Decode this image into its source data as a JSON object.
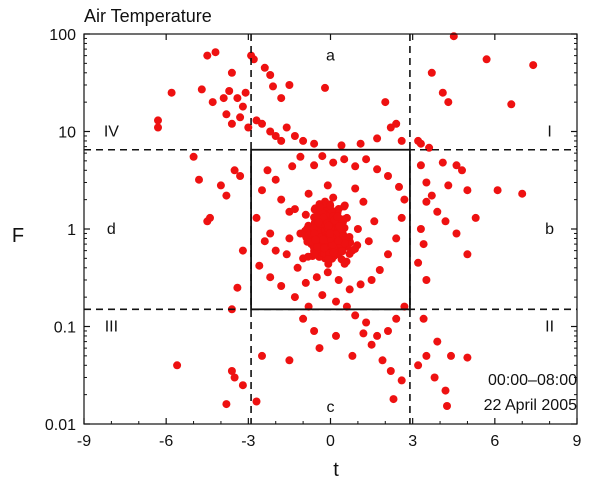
{
  "chart_data": {
    "type": "scatter",
    "title": "Air Temperature",
    "xlabel": "t",
    "ylabel": "F",
    "xlim": [
      -9,
      9
    ],
    "ylim": [
      0.01,
      100
    ],
    "yscale": "log",
    "grid": false,
    "x_ticks": [
      -9,
      -6,
      -3,
      0,
      3,
      6,
      9
    ],
    "x_tick_labels": [
      "-9",
      "-6",
      "-3",
      "0",
      "3",
      "6",
      "9"
    ],
    "y_ticks": [
      0.01,
      0.1,
      1,
      10,
      100
    ],
    "y_tick_labels": [
      "0.01",
      "0.1",
      "1",
      "10",
      "100"
    ],
    "marker_color": "#ee1111",
    "thresholds": {
      "t": [
        -2.9,
        2.9
      ],
      "F": [
        0.15,
        6.5
      ]
    },
    "region_labels": [
      {
        "text": "a",
        "x": 0,
        "y": 60
      },
      {
        "text": "b",
        "x": 8,
        "y": 1
      },
      {
        "text": "c",
        "x": 0,
        "y": 0.015
      },
      {
        "text": "d",
        "x": -8,
        "y": 1
      },
      {
        "text": "I",
        "x": 8,
        "y": 10
      },
      {
        "text": "II",
        "x": 8,
        "y": 0.1
      },
      {
        "text": "III",
        "x": -8,
        "y": 0.1
      },
      {
        "text": "IV",
        "x": -8,
        "y": 10
      }
    ],
    "annotations": [
      "00:00–08:00",
      "22 April 2005"
    ],
    "series": [
      {
        "points": [
          [
            -6.3,
            11
          ],
          [
            -6.3,
            13
          ],
          [
            -5.8,
            25
          ],
          [
            -5.6,
            0.04
          ],
          [
            -4.5,
            60
          ],
          [
            -4.2,
            65
          ],
          [
            -4.7,
            27
          ],
          [
            -4.3,
            20
          ],
          [
            -3.9,
            22
          ],
          [
            -3.6,
            40
          ],
          [
            -3.7,
            26
          ],
          [
            -3.4,
            22
          ],
          [
            -3.2,
            18
          ],
          [
            -3.1,
            25
          ],
          [
            -2.9,
            60
          ],
          [
            -2.8,
            55
          ],
          [
            -2.4,
            45
          ],
          [
            -2.2,
            38
          ],
          [
            -2.1,
            29
          ],
          [
            -1.8,
            22
          ],
          [
            -1.5,
            30
          ],
          [
            -0.2,
            28
          ],
          [
            -3.8,
            15
          ],
          [
            -3.6,
            12
          ],
          [
            -3.3,
            14
          ],
          [
            -3.0,
            11
          ],
          [
            -2.7,
            13
          ],
          [
            -2.5,
            12
          ],
          [
            -2.2,
            10
          ],
          [
            -2.0,
            9
          ],
          [
            -1.8,
            8
          ],
          [
            -1.6,
            11
          ],
          [
            -1.3,
            9
          ],
          [
            -1.0,
            8
          ],
          [
            -0.6,
            7.5
          ],
          [
            0.4,
            7.2
          ],
          [
            1.1,
            7.5
          ],
          [
            1.7,
            8.5
          ],
          [
            2.0,
            20
          ],
          [
            2.2,
            11
          ],
          [
            2.6,
            8
          ],
          [
            2.4,
            12
          ],
          [
            3.2,
            8
          ],
          [
            3.3,
            7.5
          ],
          [
            3.6,
            6.8
          ],
          [
            3.7,
            40
          ],
          [
            4.1,
            25
          ],
          [
            4.3,
            20
          ],
          [
            4.5,
            95
          ],
          [
            5.7,
            55
          ],
          [
            6.6,
            19
          ],
          [
            7.4,
            48
          ],
          [
            3.3,
            4.5
          ],
          [
            3.5,
            3.0
          ],
          [
            3.7,
            2.2
          ],
          [
            3.5,
            1.9
          ],
          [
            3.9,
            1.5
          ],
          [
            4.1,
            4.8
          ],
          [
            4.3,
            2.8
          ],
          [
            4.6,
            4.5
          ],
          [
            4.8,
            4.0
          ],
          [
            5.0,
            2.5
          ],
          [
            5.3,
            1.3
          ],
          [
            6.1,
            2.5
          ],
          [
            7.0,
            2.3
          ],
          [
            4.2,
            1.2
          ],
          [
            4.6,
            0.9
          ],
          [
            5.0,
            0.55
          ],
          [
            3.3,
            1.0
          ],
          [
            3.4,
            0.7
          ],
          [
            3.2,
            0.45
          ],
          [
            3.5,
            0.3
          ],
          [
            -5.0,
            5.5
          ],
          [
            -4.8,
            3.2
          ],
          [
            -4.5,
            1.2
          ],
          [
            -4.4,
            1.3
          ],
          [
            -4.0,
            2.8
          ],
          [
            -3.8,
            2.2
          ],
          [
            -3.5,
            4.0
          ],
          [
            -3.3,
            3.5
          ],
          [
            -3.2,
            0.6
          ],
          [
            -3.4,
            0.25
          ],
          [
            -3.6,
            0.15
          ],
          [
            -3.5,
            0.03
          ],
          [
            -3.6,
            0.035
          ],
          [
            -3.8,
            0.016
          ],
          [
            -3.2,
            0.025
          ],
          [
            -2.5,
            0.05
          ],
          [
            -2.7,
            0.017
          ],
          [
            -1.5,
            0.045
          ],
          [
            -1.0,
            0.12
          ],
          [
            -0.6,
            0.09
          ],
          [
            -0.4,
            0.06
          ],
          [
            0.2,
            0.08
          ],
          [
            0.8,
            0.05
          ],
          [
            1.2,
            0.085
          ],
          [
            1.5,
            0.065
          ],
          [
            1.9,
            0.045
          ],
          [
            2.2,
            0.035
          ],
          [
            2.6,
            0.028
          ],
          [
            2.3,
            0.018
          ],
          [
            3.2,
            0.04
          ],
          [
            3.5,
            0.05
          ],
          [
            3.8,
            0.03
          ],
          [
            4.2,
            0.022
          ],
          [
            4.4,
            0.05
          ],
          [
            5.0,
            0.048
          ],
          [
            3.9,
            0.07
          ],
          [
            3.4,
            0.12
          ],
          [
            2.7,
            0.16
          ],
          [
            2.4,
            0.12
          ],
          [
            2.1,
            0.09
          ],
          [
            1.7,
            0.08
          ],
          [
            1.3,
            0.11
          ],
          [
            0.9,
            0.13
          ],
          [
            0.6,
            0.16
          ],
          [
            0.2,
            0.18
          ],
          [
            -0.3,
            0.21
          ],
          [
            -0.8,
            0.16
          ],
          [
            -1.3,
            0.2
          ],
          [
            -1.8,
            0.26
          ],
          [
            -2.2,
            0.32
          ],
          [
            -2.6,
            0.42
          ],
          [
            -2.7,
            1.3
          ],
          [
            -2.5,
            2.5
          ],
          [
            -2.3,
            4.0
          ],
          [
            -2.0,
            3.2
          ],
          [
            -1.8,
            2.0
          ],
          [
            -1.5,
            1.5
          ],
          [
            -1.4,
            4.4
          ],
          [
            -1.1,
            5.5
          ],
          [
            -0.6,
            4.5
          ],
          [
            -0.3,
            5.6
          ],
          [
            0.1,
            4.8
          ],
          [
            0.5,
            5.2
          ],
          [
            0.9,
            4.4
          ],
          [
            1.3,
            5.2
          ],
          [
            1.7,
            4.1
          ],
          [
            2.1,
            3.5
          ],
          [
            2.5,
            2.7
          ],
          [
            2.7,
            2.0
          ],
          [
            2.6,
            1.3
          ],
          [
            2.4,
            0.8
          ],
          [
            2.1,
            0.55
          ],
          [
            1.8,
            0.38
          ],
          [
            1.5,
            0.3
          ],
          [
            1.1,
            0.27
          ],
          [
            0.7,
            0.24
          ],
          [
            0.3,
            0.3
          ],
          [
            -0.1,
            0.36
          ],
          [
            -0.5,
            0.32
          ],
          [
            -0.9,
            0.28
          ],
          [
            -1.2,
            0.4
          ],
          [
            -1.6,
            0.55
          ],
          [
            -2.0,
            0.6
          ],
          [
            -2.2,
            0.9
          ],
          [
            -2.4,
            0.75
          ],
          [
            -0.5,
            1.0
          ],
          [
            -0.3,
            1.2
          ],
          [
            0.0,
            0.9
          ],
          [
            0.2,
            1.1
          ],
          [
            0.4,
            0.8
          ],
          [
            0.6,
            1.3
          ],
          [
            -0.7,
            0.7
          ],
          [
            -0.9,
            1.4
          ],
          [
            0.8,
            0.6
          ],
          [
            1.0,
            1.0
          ],
          [
            -1.1,
            0.9
          ],
          [
            -0.2,
            0.5
          ],
          [
            0.3,
            0.55
          ],
          [
            -0.4,
            1.8
          ],
          [
            0.1,
            2.1
          ],
          [
            0.5,
            1.7
          ],
          [
            -0.8,
            2.3
          ],
          [
            1.2,
            1.9
          ],
          [
            -1.3,
            1.6
          ],
          [
            1.4,
            0.75
          ],
          [
            -1.5,
            0.8
          ],
          [
            0.9,
            2.6
          ],
          [
            -0.1,
            2.8
          ],
          [
            -1.0,
            0.5
          ],
          [
            1.6,
            1.2
          ]
        ]
      }
    ]
  }
}
